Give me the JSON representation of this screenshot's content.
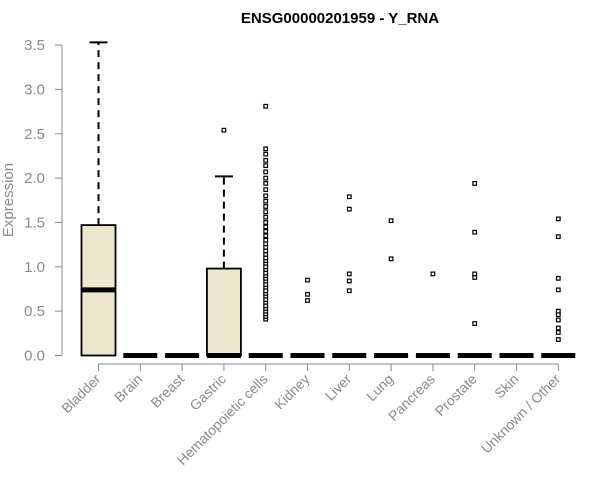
{
  "chart_data": {
    "type": "boxplot",
    "title": "ENSG00000201959 - Y_RNA",
    "ylabel": "Expression",
    "xlabel": "",
    "ylim": [
      0,
      3.55
    ],
    "yticks": [
      "0.0",
      "0.5",
      "1.0",
      "1.5",
      "2.0",
      "2.5",
      "3.0",
      "3.5"
    ],
    "box_fill": "#ede7cf",
    "categories": [
      "Bladder",
      "Brain",
      "Breast",
      "Gastric",
      "Hematopoietic cells",
      "Kidney",
      "Liver",
      "Lung",
      "Pancreas",
      "Prostate",
      "Skin",
      "Unknown / Other"
    ],
    "boxes": [
      {
        "min": 0,
        "q1": 0,
        "median": 0.74,
        "q3": 1.47,
        "max": 3.53,
        "outliers": []
      },
      {
        "min": 0,
        "q1": 0,
        "median": 0,
        "q3": 0,
        "max": 0,
        "outliers": []
      },
      {
        "min": 0,
        "q1": 0,
        "median": 0,
        "q3": 0,
        "max": 0,
        "outliers": []
      },
      {
        "min": 0,
        "q1": 0,
        "median": 0,
        "q3": 0.98,
        "max": 2.02,
        "outliers": [
          2.54
        ]
      },
      {
        "min": 0,
        "q1": 0,
        "median": 0,
        "q3": 0,
        "max": 0,
        "outliers": [
          0.41,
          0.44,
          0.47,
          0.5,
          0.53,
          0.56,
          0.6,
          0.63,
          0.67,
          0.7,
          0.73,
          0.77,
          0.8,
          0.84,
          0.87,
          0.9,
          0.93,
          0.97,
          1.0,
          1.04,
          1.07,
          1.1,
          1.14,
          1.18,
          1.22,
          1.26,
          1.3,
          1.35,
          1.4,
          1.45,
          1.5,
          1.56,
          1.62,
          1.68,
          1.74,
          1.8,
          1.87,
          1.94,
          2.0,
          2.07,
          2.14,
          2.2,
          2.27,
          2.33,
          2.81
        ]
      },
      {
        "min": 0,
        "q1": 0,
        "median": 0,
        "q3": 0,
        "max": 0,
        "outliers": [
          0.62,
          0.69,
          0.85
        ]
      },
      {
        "min": 0,
        "q1": 0,
        "median": 0,
        "q3": 0,
        "max": 0,
        "outliers": [
          0.73,
          0.84,
          0.92,
          1.65,
          1.79
        ]
      },
      {
        "min": 0,
        "q1": 0,
        "median": 0,
        "q3": 0,
        "max": 0,
        "outliers": [
          1.09,
          1.52
        ]
      },
      {
        "min": 0,
        "q1": 0,
        "median": 0,
        "q3": 0,
        "max": 0,
        "outliers": [
          0.92
        ]
      },
      {
        "min": 0,
        "q1": 0,
        "median": 0,
        "q3": 0,
        "max": 0,
        "outliers": [
          0.36,
          0.88,
          0.92,
          1.39,
          1.94
        ]
      },
      {
        "min": 0,
        "q1": 0,
        "median": 0,
        "q3": 0,
        "max": 0,
        "outliers": []
      },
      {
        "min": 0,
        "q1": 0,
        "median": 0,
        "q3": 0,
        "max": 0,
        "outliers": [
          0.18,
          0.26,
          0.31,
          0.4,
          0.46,
          0.5,
          0.74,
          0.87,
          1.34,
          1.54
        ]
      }
    ]
  }
}
